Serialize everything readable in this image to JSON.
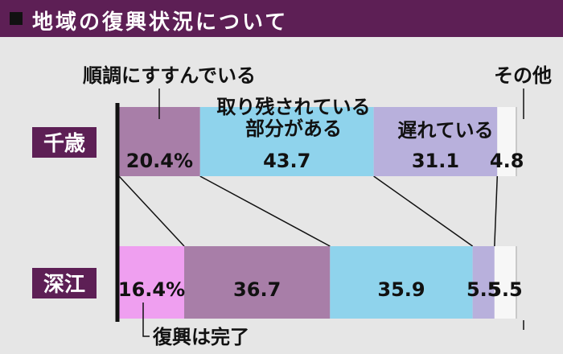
{
  "title": "地域の復興状況について",
  "colors": {
    "header_bg": "#5d1f55",
    "completed": "#ef9ff0",
    "smooth": "#a87ea8",
    "remaining": "#8fd3ec",
    "delayed": "#b8b0dc",
    "other": "#f7f7f7",
    "row_label_bg": "#5d1f55"
  },
  "chart_data": {
    "type": "bar",
    "orientation": "horizontal",
    "stacked": true,
    "unit": "%",
    "categories": [
      "千歳",
      "深江"
    ],
    "series": [
      {
        "name": "復興は完了",
        "values": [
          null,
          16.4
        ]
      },
      {
        "name": "順調にすすんでいる",
        "values": [
          20.4,
          36.7
        ]
      },
      {
        "name": "取り残されている部分がある",
        "values": [
          43.7,
          35.9
        ]
      },
      {
        "name": "遅れている",
        "values": [
          31.1,
          5.5
        ]
      },
      {
        "name": "その他",
        "values": [
          4.8,
          5.5
        ]
      }
    ],
    "value_labels": [
      [
        "",
        "20.4%",
        "43.7",
        "31.1",
        "4.8"
      ],
      [
        "16.4%",
        "36.7",
        "35.9",
        "5.5",
        "5.5"
      ]
    ],
    "legend_labels": {
      "smooth": "順調にすすんでいる",
      "remaining_line1": "取り残されている",
      "remaining_line2": "部分がある",
      "delayed": "遅れている",
      "other": "その他",
      "completed": "復興は完了"
    }
  }
}
